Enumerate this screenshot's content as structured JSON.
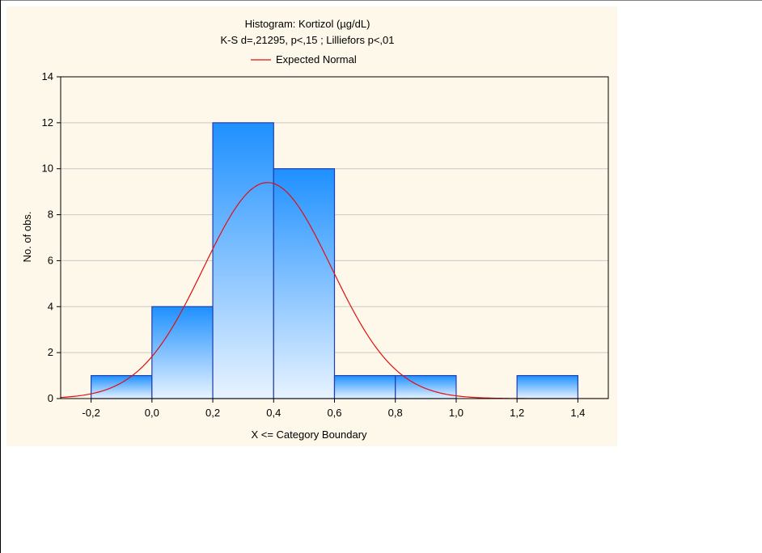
{
  "chart_data": {
    "type": "bar",
    "title": "Histogram: Kortizol (µg/dL)",
    "subtitle": "K-S d=,21295, p<,15 ; Lilliefors p<,01",
    "legend": {
      "entries": [
        "Expected Normal"
      ],
      "placement": "top"
    },
    "xlabel": "X <= Category Boundary",
    "ylabel": "No. of obs.",
    "xlim": [
      -0.3,
      1.5
    ],
    "ylim": [
      0,
      14
    ],
    "x_ticks": [
      -0.2,
      0.0,
      0.2,
      0.4,
      0.6,
      0.8,
      1.0,
      1.2,
      1.4
    ],
    "x_tick_labels": [
      "-0,2",
      "0,0",
      "0,2",
      "0,4",
      "0,6",
      "0,8",
      "1,0",
      "1,2",
      "1,4"
    ],
    "y_ticks": [
      0,
      2,
      4,
      6,
      8,
      10,
      12,
      14
    ],
    "y_tick_labels": [
      "0",
      "2",
      "4",
      "6",
      "8",
      "10",
      "12",
      "14"
    ],
    "grid": true,
    "bins": [
      {
        "from": -0.2,
        "to": 0.0,
        "count": 1
      },
      {
        "from": 0.0,
        "to": 0.2,
        "count": 4
      },
      {
        "from": 0.2,
        "to": 0.4,
        "count": 12
      },
      {
        "from": 0.4,
        "to": 0.6,
        "count": 10
      },
      {
        "from": 0.6,
        "to": 0.8,
        "count": 1
      },
      {
        "from": 0.8,
        "to": 1.0,
        "count": 1
      },
      {
        "from": 1.0,
        "to": 1.2,
        "count": 0
      },
      {
        "from": 1.2,
        "to": 1.4,
        "count": 1
      }
    ],
    "series": [
      {
        "name": "Expected Normal",
        "type": "line",
        "distribution": "normal",
        "peak_x": 0.38,
        "peak_y": 9.4,
        "sd": 0.21
      }
    ],
    "colors": {
      "bar_top": "#1e90ff",
      "bar_bottom": "#e8f3ff",
      "bar_edge": "#1f3fb0",
      "curve": "#e01010",
      "panel": "#fdf8ea"
    }
  }
}
